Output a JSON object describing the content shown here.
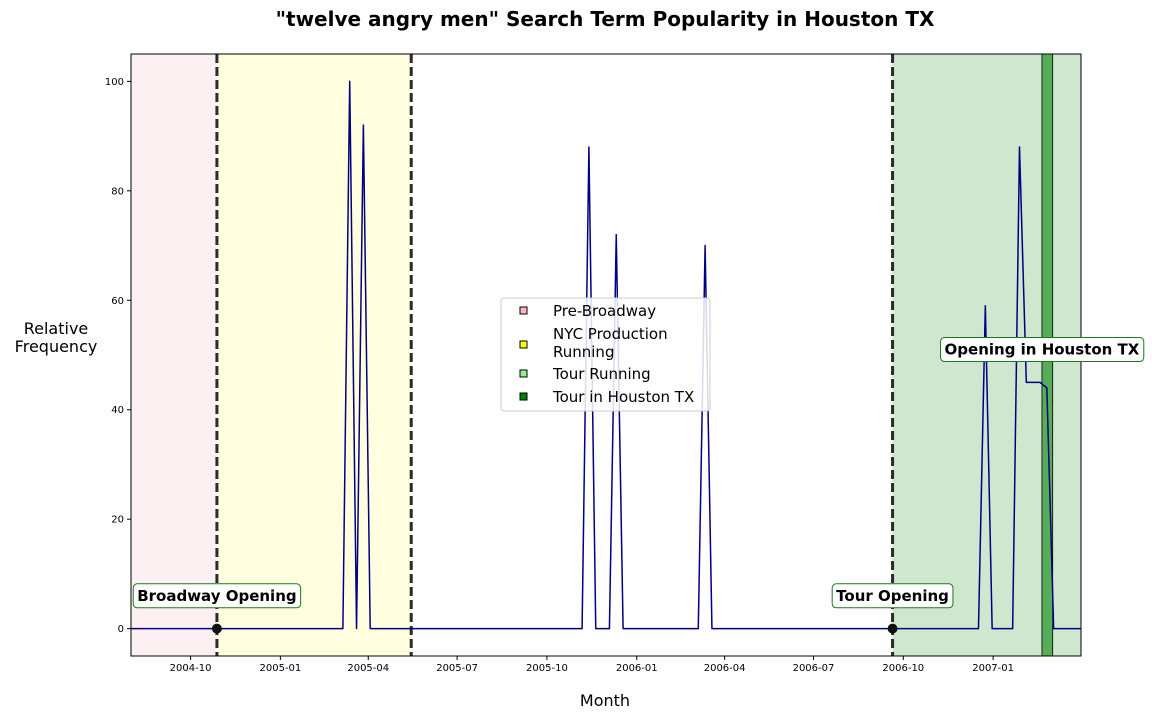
{
  "chart_data": {
    "type": "line",
    "title": "\"twelve angry men\" Search Term Popularity in Houston TX",
    "xlabel": "Month",
    "ylabel_lines": [
      "Relative",
      "Frequency"
    ],
    "xlim": [
      "2004-08-01",
      "2007-04-01"
    ],
    "ylim": [
      -5,
      105
    ],
    "yticks": [
      0,
      20,
      40,
      60,
      80,
      100
    ],
    "xticks": [
      {
        "date": "2004-10-01",
        "label": "2004-10"
      },
      {
        "date": "2005-01-01",
        "label": "2005-01"
      },
      {
        "date": "2005-04-01",
        "label": "2005-04"
      },
      {
        "date": "2005-07-01",
        "label": "2005-07"
      },
      {
        "date": "2005-10-01",
        "label": "2005-10"
      },
      {
        "date": "2006-01-01",
        "label": "2006-01"
      },
      {
        "date": "2006-04-01",
        "label": "2006-04"
      },
      {
        "date": "2006-07-01",
        "label": "2006-07"
      },
      {
        "date": "2006-10-01",
        "label": "2006-10"
      },
      {
        "date": "2007-01-01",
        "label": "2007-01"
      }
    ],
    "regions": [
      {
        "name": "Pre-Broadway",
        "start": "2004-08-01",
        "end": "2004-10-28",
        "fill": "#fdf0f3",
        "swatch": "#ffb6c1"
      },
      {
        "name": "NYC Production Running",
        "start": "2004-10-28",
        "end": "2005-05-15",
        "fill": "#ffffe0",
        "swatch": "#ffff00"
      },
      {
        "name": "Tour Running",
        "start": "2006-09-20",
        "end": "2007-04-01",
        "fill": "#cfe6cf",
        "swatch": "#90ee90"
      },
      {
        "name": "Tour in Houston TX",
        "start": "2007-02-20",
        "end": "2007-03-03",
        "fill": "#57ad57",
        "swatch": "#008000"
      }
    ],
    "events": [
      {
        "date": "2004-10-28",
        "label": "Broadway Opening"
      },
      {
        "date": "2005-05-15",
        "label": ""
      },
      {
        "date": "2006-09-20",
        "label": "Tour Opening"
      }
    ],
    "annotations": [
      {
        "label": "Opening in Houston TX",
        "date": "2007-02-20",
        "y": 51
      }
    ],
    "legend_position": "center",
    "series": [
      {
        "color": "#000080",
        "points": [
          [
            "2004-08-01",
            0
          ],
          [
            "2005-03-06",
            0
          ],
          [
            "2005-03-13",
            100
          ],
          [
            "2005-03-20",
            0
          ],
          [
            "2005-03-27",
            92
          ],
          [
            "2005-04-03",
            0
          ],
          [
            "2005-11-06",
            0
          ],
          [
            "2005-11-13",
            88
          ],
          [
            "2005-11-20",
            0
          ],
          [
            "2005-12-04",
            0
          ],
          [
            "2005-12-11",
            72
          ],
          [
            "2005-12-18",
            0
          ],
          [
            "2006-03-05",
            0
          ],
          [
            "2006-03-12",
            70
          ],
          [
            "2006-03-19",
            0
          ],
          [
            "2006-12-17",
            0
          ],
          [
            "2006-12-24",
            59
          ],
          [
            "2006-12-31",
            0
          ],
          [
            "2007-01-21",
            0
          ],
          [
            "2007-01-28",
            88
          ],
          [
            "2007-02-04",
            45
          ],
          [
            "2007-02-11",
            45
          ],
          [
            "2007-02-18",
            45
          ],
          [
            "2007-02-25",
            44
          ],
          [
            "2007-03-04",
            0
          ],
          [
            "2007-04-01",
            0
          ]
        ]
      }
    ]
  }
}
